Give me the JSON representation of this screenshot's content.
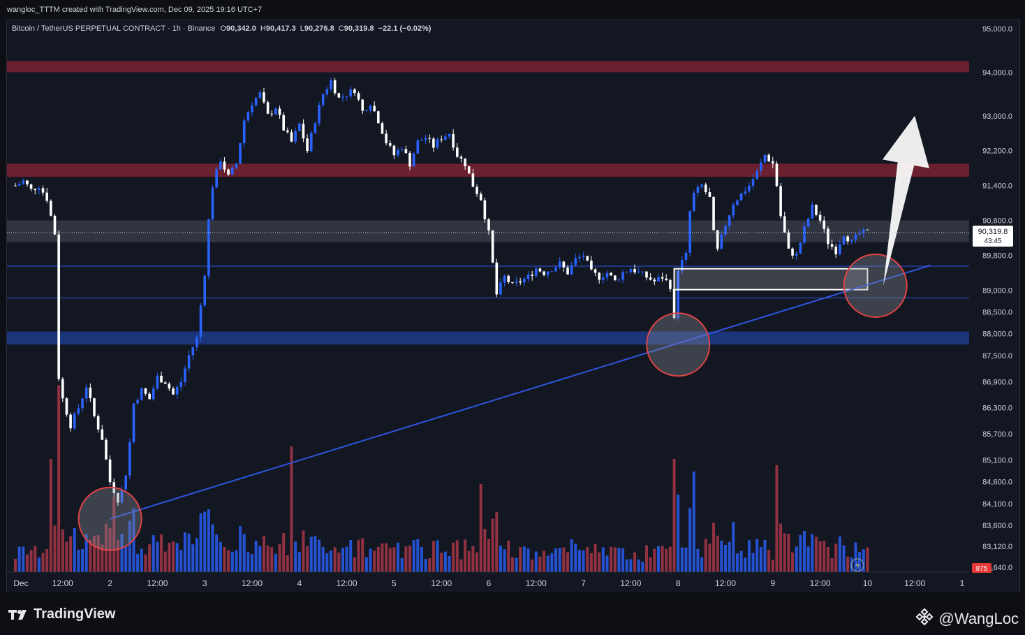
{
  "header": {
    "credit": "wangloc_TTTM created with TradingView.com, Dec 09, 2025 19:16 UTC+7"
  },
  "legend": {
    "symbol": "Bitcoin / TetherUS PERPETUAL CONTRACT · 1h · Binance",
    "o_label": "O",
    "o_value": "90,342.0",
    "h_label": "H",
    "h_value": "90,417.3",
    "l_label": "L",
    "l_value": "90,276.8",
    "c_label": "C",
    "c_value": "90,319.8",
    "change": "−22.1 (−0.02%)"
  },
  "colors": {
    "background": "#131722",
    "up": "#2962ff",
    "down": "#ffffff",
    "vol_up": "#2962ff",
    "vol_down": "#b2384a",
    "resistance_zone": "#7a2230",
    "support_zone": "#1e3a8a",
    "neutral_zone": "#3a3f4b",
    "trendline": "#2f55e0",
    "circle": "#e04444",
    "price_badge": "#ffffff",
    "volume_badge": "#e53935"
  },
  "chart_data": {
    "type": "candlestick",
    "symbol": "BTCUSDT.P",
    "timeframe": "1h",
    "ylim": [
      82700,
      95200
    ],
    "y_ticks": [
      "95,000.0",
      "94,000.0",
      "93,000.0",
      "92,200.0",
      "91,400.0",
      "90,600.0",
      "89,800.0",
      "89,000.0",
      "88,500.0",
      "88,000.0",
      "87,500.0",
      "86,900.0",
      "86,300.0",
      "85,700.0",
      "85,100.0",
      "84,600.0",
      "84,100.0",
      "83,600.0",
      "83,120.0",
      "82,640.0"
    ],
    "y_tick_values": [
      95000,
      94000,
      93000,
      92200,
      91400,
      90600,
      89800,
      89000,
      88500,
      88000,
      87500,
      86900,
      86300,
      85700,
      85100,
      84600,
      84100,
      83600,
      83120,
      82640
    ],
    "x_ticks": [
      "Dec",
      "12:00",
      "2",
      "12:00",
      "3",
      "12:00",
      "4",
      "12:00",
      "5",
      "12:00",
      "6",
      "12:00",
      "7",
      "12:00",
      "8",
      "12:00",
      "9",
      "12:00",
      "10",
      "12:00",
      "1"
    ],
    "x_tick_hours": [
      0,
      12,
      24,
      36,
      48,
      60,
      72,
      84,
      96,
      108,
      120,
      132,
      144,
      156,
      168,
      180,
      192,
      204,
      216,
      228,
      240
    ],
    "last_price": "90,319.8",
    "countdown": "43:45",
    "volume_label": "875",
    "close_path": [
      [
        0,
        91400
      ],
      [
        2,
        91500
      ],
      [
        4,
        91300
      ],
      [
        6,
        91400
      ],
      [
        8,
        91100
      ],
      [
        10,
        90300
      ],
      [
        11,
        87000
      ],
      [
        12,
        86500
      ],
      [
        14,
        85900
      ],
      [
        16,
        86300
      ],
      [
        18,
        86800
      ],
      [
        20,
        86100
      ],
      [
        22,
        85600
      ],
      [
        24,
        84600
      ],
      [
        26,
        84200
      ],
      [
        27,
        84400
      ],
      [
        28,
        84800
      ],
      [
        29,
        85500
      ],
      [
        30,
        86400
      ],
      [
        32,
        86700
      ],
      [
        34,
        86500
      ],
      [
        36,
        87000
      ],
      [
        38,
        86900
      ],
      [
        40,
        86600
      ],
      [
        42,
        86900
      ],
      [
        44,
        87500
      ],
      [
        46,
        87900
      ],
      [
        48,
        89400
      ],
      [
        49,
        90600
      ],
      [
        50,
        91400
      ],
      [
        52,
        92000
      ],
      [
        54,
        91600
      ],
      [
        56,
        91900
      ],
      [
        58,
        92900
      ],
      [
        60,
        93300
      ],
      [
        62,
        93500
      ],
      [
        64,
        93000
      ],
      [
        66,
        93200
      ],
      [
        68,
        92700
      ],
      [
        70,
        92400
      ],
      [
        72,
        92800
      ],
      [
        74,
        92200
      ],
      [
        76,
        92900
      ],
      [
        78,
        93500
      ],
      [
        80,
        93800
      ],
      [
        82,
        93400
      ],
      [
        84,
        93500
      ],
      [
        86,
        93600
      ],
      [
        88,
        93100
      ],
      [
        90,
        93300
      ],
      [
        92,
        92900
      ],
      [
        94,
        92400
      ],
      [
        96,
        92100
      ],
      [
        98,
        92300
      ],
      [
        100,
        91900
      ],
      [
        102,
        92400
      ],
      [
        104,
        92500
      ],
      [
        106,
        92300
      ],
      [
        108,
        92500
      ],
      [
        110,
        92600
      ],
      [
        112,
        92100
      ],
      [
        114,
        91900
      ],
      [
        116,
        91400
      ],
      [
        118,
        91100
      ],
      [
        120,
        90300
      ],
      [
        121,
        89600
      ],
      [
        122,
        88900
      ],
      [
        124,
        89300
      ],
      [
        126,
        89100
      ],
      [
        128,
        89200
      ],
      [
        130,
        89300
      ],
      [
        132,
        89500
      ],
      [
        134,
        89400
      ],
      [
        136,
        89500
      ],
      [
        138,
        89600
      ],
      [
        140,
        89400
      ],
      [
        142,
        89700
      ],
      [
        144,
        89800
      ],
      [
        146,
        89400
      ],
      [
        148,
        89300
      ],
      [
        150,
        89400
      ],
      [
        152,
        89200
      ],
      [
        154,
        89400
      ],
      [
        156,
        89500
      ],
      [
        158,
        89400
      ],
      [
        160,
        89300
      ],
      [
        162,
        89200
      ],
      [
        164,
        89300
      ],
      [
        166,
        89100
      ],
      [
        167,
        88300
      ],
      [
        168,
        89500
      ],
      [
        170,
        89800
      ],
      [
        171,
        90800
      ],
      [
        172,
        91200
      ],
      [
        174,
        91400
      ],
      [
        176,
        91100
      ],
      [
        177,
        90300
      ],
      [
        178,
        89900
      ],
      [
        180,
        90500
      ],
      [
        182,
        91000
      ],
      [
        184,
        91200
      ],
      [
        186,
        91400
      ],
      [
        188,
        91700
      ],
      [
        190,
        92100
      ],
      [
        192,
        91900
      ],
      [
        193,
        91400
      ],
      [
        194,
        90700
      ],
      [
        196,
        89900
      ],
      [
        198,
        89800
      ],
      [
        200,
        90400
      ],
      [
        202,
        90900
      ],
      [
        204,
        90600
      ],
      [
        206,
        90100
      ],
      [
        208,
        89900
      ],
      [
        210,
        90300
      ],
      [
        212,
        90100
      ],
      [
        214,
        90300
      ],
      [
        216,
        90320
      ]
    ],
    "volume_spikes": [
      [
        9,
        18
      ],
      [
        15,
        7
      ],
      [
        25,
        12
      ],
      [
        37,
        6
      ],
      [
        49,
        10
      ],
      [
        61,
        5
      ],
      [
        70,
        20
      ],
      [
        78,
        4
      ],
      [
        92,
        4
      ],
      [
        103,
        4
      ],
      [
        118,
        14
      ],
      [
        128,
        4
      ],
      [
        146,
        3
      ],
      [
        167,
        18
      ],
      [
        172,
        16
      ],
      [
        182,
        8
      ],
      [
        193,
        17
      ],
      [
        206,
        4
      ]
    ],
    "zones": [
      {
        "kind": "resistance",
        "from": 94000,
        "to": 94260
      },
      {
        "kind": "resistance",
        "from": 91600,
        "to": 91900
      },
      {
        "kind": "neutral",
        "from": 90100,
        "to": 90600
      },
      {
        "kind": "support",
        "from": 87750,
        "to": 88050
      }
    ],
    "horizontal_lines": [
      89550,
      88820
    ],
    "range_box": {
      "t1": 167,
      "t2": 216,
      "p1": 89490,
      "p2": 89010
    },
    "trendline": {
      "t1": 24,
      "p1": 83750,
      "t2": 232,
      "p2": 89570
    },
    "circles": [
      {
        "t": 24,
        "p": 83750
      },
      {
        "t": 168,
        "p": 87750
      },
      {
        "t": 218,
        "p": 89100
      }
    ],
    "arrow": {
      "t1": 220,
      "p1": 89100,
      "t2": 228,
      "p2": 93000
    }
  },
  "footer": {
    "brand": "TradingView",
    "author": "@WangLoc"
  }
}
